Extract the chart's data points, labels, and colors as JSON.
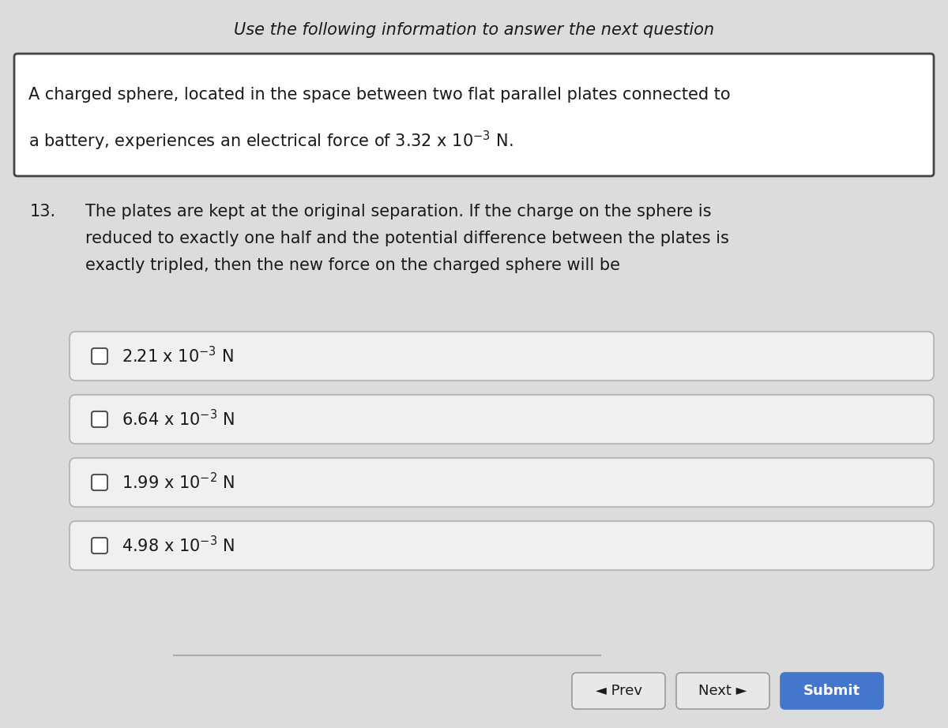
{
  "background_color": "#dcdcdc",
  "header_text": "Use the following information to answer the next question",
  "info_line1": "A charged sphere, located in the space between two flat parallel plates connected to",
  "info_line2": "a battery, experiences an electrical force of 3.32 x 10$^{-3}$ N.",
  "question_number": "13.",
  "q_line1": "The plates are kept at the original separation. If the charge on the sphere is",
  "q_line2": "reduced to exactly one half and the potential difference between the plates is",
  "q_line3": "exactly tripled, then the new force on the charged sphere will be",
  "options": [
    "2.21 x 10$^{-3}$ N",
    "6.64 x 10$^{-3}$ N",
    "1.99 x 10$^{-2}$ N",
    "4.98 x 10$^{-3}$ N"
  ],
  "option_box_facecolor": "#f0f0f0",
  "option_box_edgecolor": "#b0b0b0",
  "info_box_facecolor": "#ffffff",
  "info_box_edgecolor": "#444444",
  "checkbox_edgecolor": "#555555",
  "prev_text": "◄ Prev",
  "next_text": "Next ►",
  "submit_text": "Submit",
  "submit_color": "#4477cc",
  "btn_edge_color": "#999999",
  "btn_face_color": "#e8e8e8",
  "text_color": "#1a1a1a",
  "line_color": "#aaaaaa",
  "header_fs": 15,
  "body_fs": 15,
  "opt_fs": 15,
  "btn_fs": 13
}
